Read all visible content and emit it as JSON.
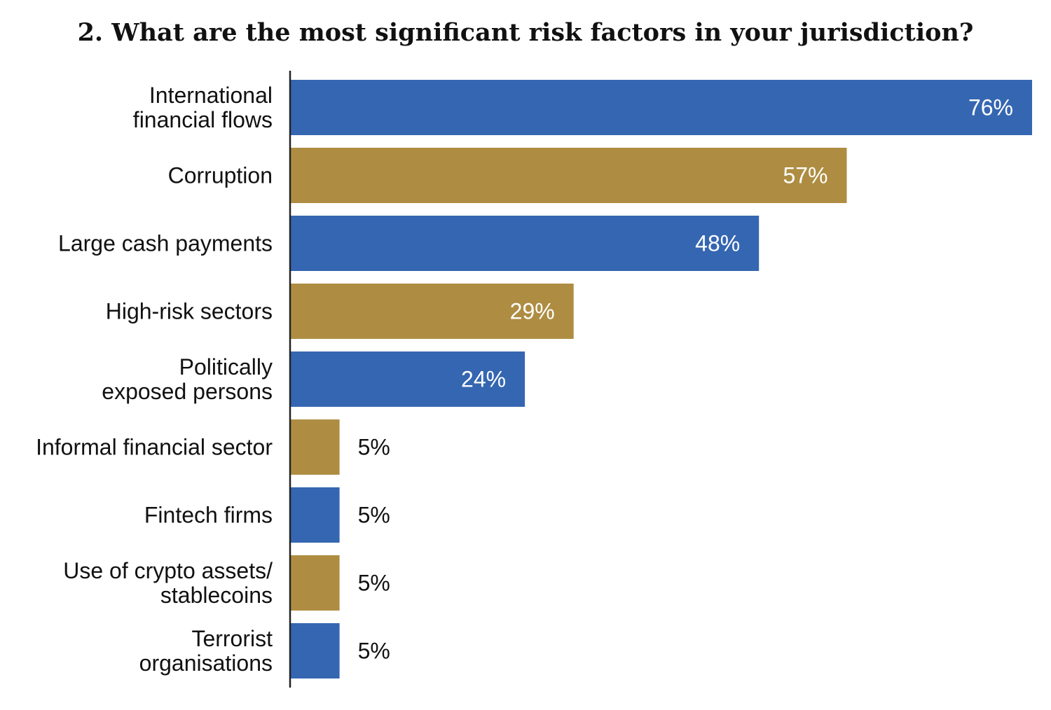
{
  "chart_data": {
    "type": "bar",
    "orientation": "horizontal",
    "title": "2. What are the most significant risk factors in your jurisdiction?",
    "xlabel": "",
    "ylabel": "",
    "xlim": [
      0,
      76
    ],
    "grid": false,
    "value_suffix": "%",
    "categories": [
      [
        "International",
        "financial flows"
      ],
      [
        "Corruption"
      ],
      [
        "Large cash payments"
      ],
      [
        "High-risk sectors"
      ],
      [
        "Politically",
        "exposed persons"
      ],
      [
        "Informal financial sector"
      ],
      [
        "Fintech firms"
      ],
      [
        "Use of crypto assets/",
        "stablecoins"
      ],
      [
        "Terrorist",
        "organisations"
      ]
    ],
    "values": [
      76,
      57,
      48,
      29,
      24,
      5,
      5,
      5,
      5
    ],
    "data_labels": [
      "76%",
      "57%",
      "48%",
      "29%",
      "24%",
      "5%",
      "5%",
      "5%",
      "5%"
    ],
    "colors": [
      "#3566B1",
      "#AE8D42"
    ]
  }
}
